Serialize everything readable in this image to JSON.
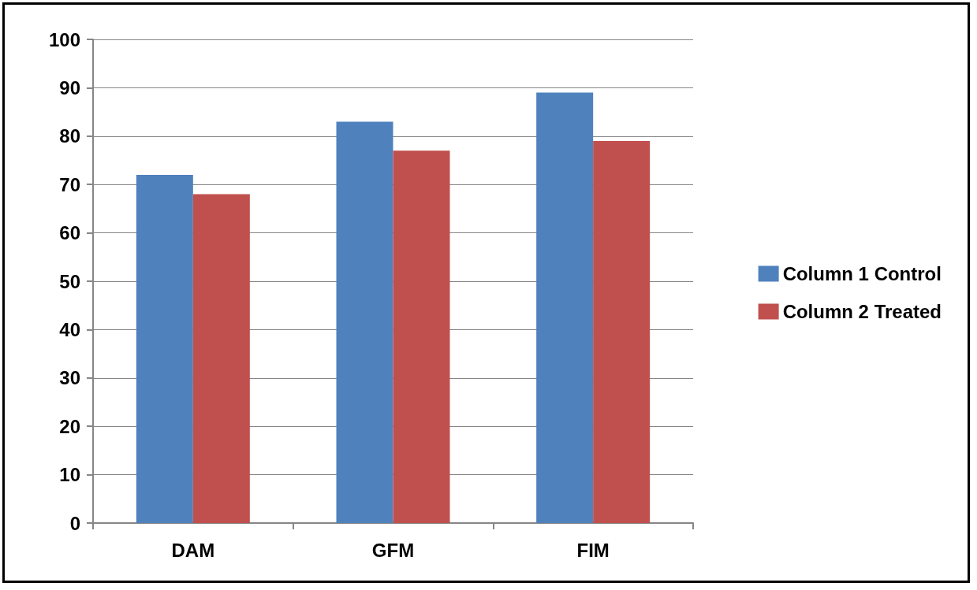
{
  "chart_data": {
    "type": "bar",
    "categories": [
      "DAM",
      "GFM",
      "FIM"
    ],
    "series": [
      {
        "name": "Column 1 Control",
        "color": "#4f81bd",
        "values": [
          72,
          83,
          89
        ]
      },
      {
        "name": "Column 2 Treated",
        "color": "#c0504d",
        "values": [
          68,
          77,
          79
        ]
      }
    ],
    "ylim": [
      0,
      100
    ],
    "yticks": [
      0,
      10,
      20,
      30,
      40,
      50,
      60,
      70,
      80,
      90,
      100
    ],
    "grid": "y",
    "legend": "right"
  }
}
